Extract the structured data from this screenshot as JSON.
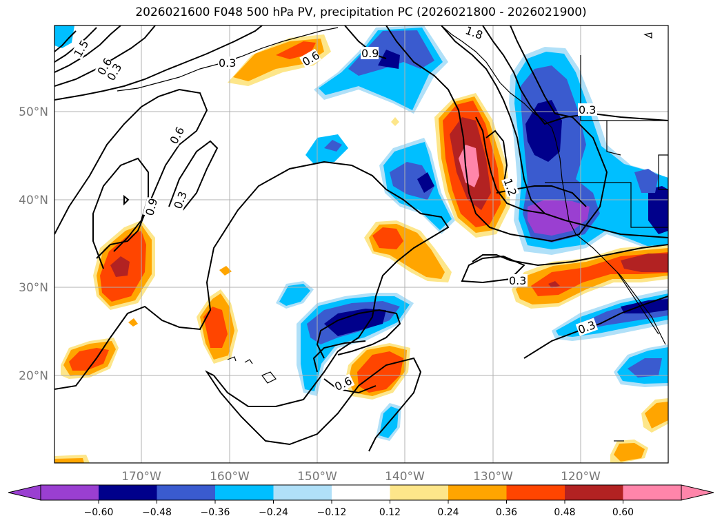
{
  "title": "2026021600 F048 500 hPa PV, precipitation PC (2026021800 - 2026021900)",
  "lat_labels": [
    "50°N",
    "40°N",
    "30°N",
    "20°N"
  ],
  "lon_labels": [
    "170°W",
    "160°W",
    "150°W",
    "140°W",
    "130°W",
    "120°W"
  ],
  "colorbar": {
    "ticks": [
      "−0.60",
      "−0.48",
      "−0.36",
      "−0.24",
      "−0.12",
      "0.12",
      "0.24",
      "0.36",
      "0.48",
      "0.60"
    ],
    "colors": [
      "#9a3fd1",
      "#00008b",
      "#3a5bcf",
      "#00bfff",
      "#b0e0f8",
      "#ffffff",
      "#fde68a",
      "#ffa500",
      "#ff4500",
      "#b22222",
      "#ff85aa"
    ]
  },
  "contour_labels": [
    "0.3",
    "0.6",
    "0.9",
    "1.2",
    "1.5",
    "1.8"
  ],
  "colors": {
    "coast": "#000000",
    "grid": "#b0b0b0",
    "contour": "#000000"
  }
}
